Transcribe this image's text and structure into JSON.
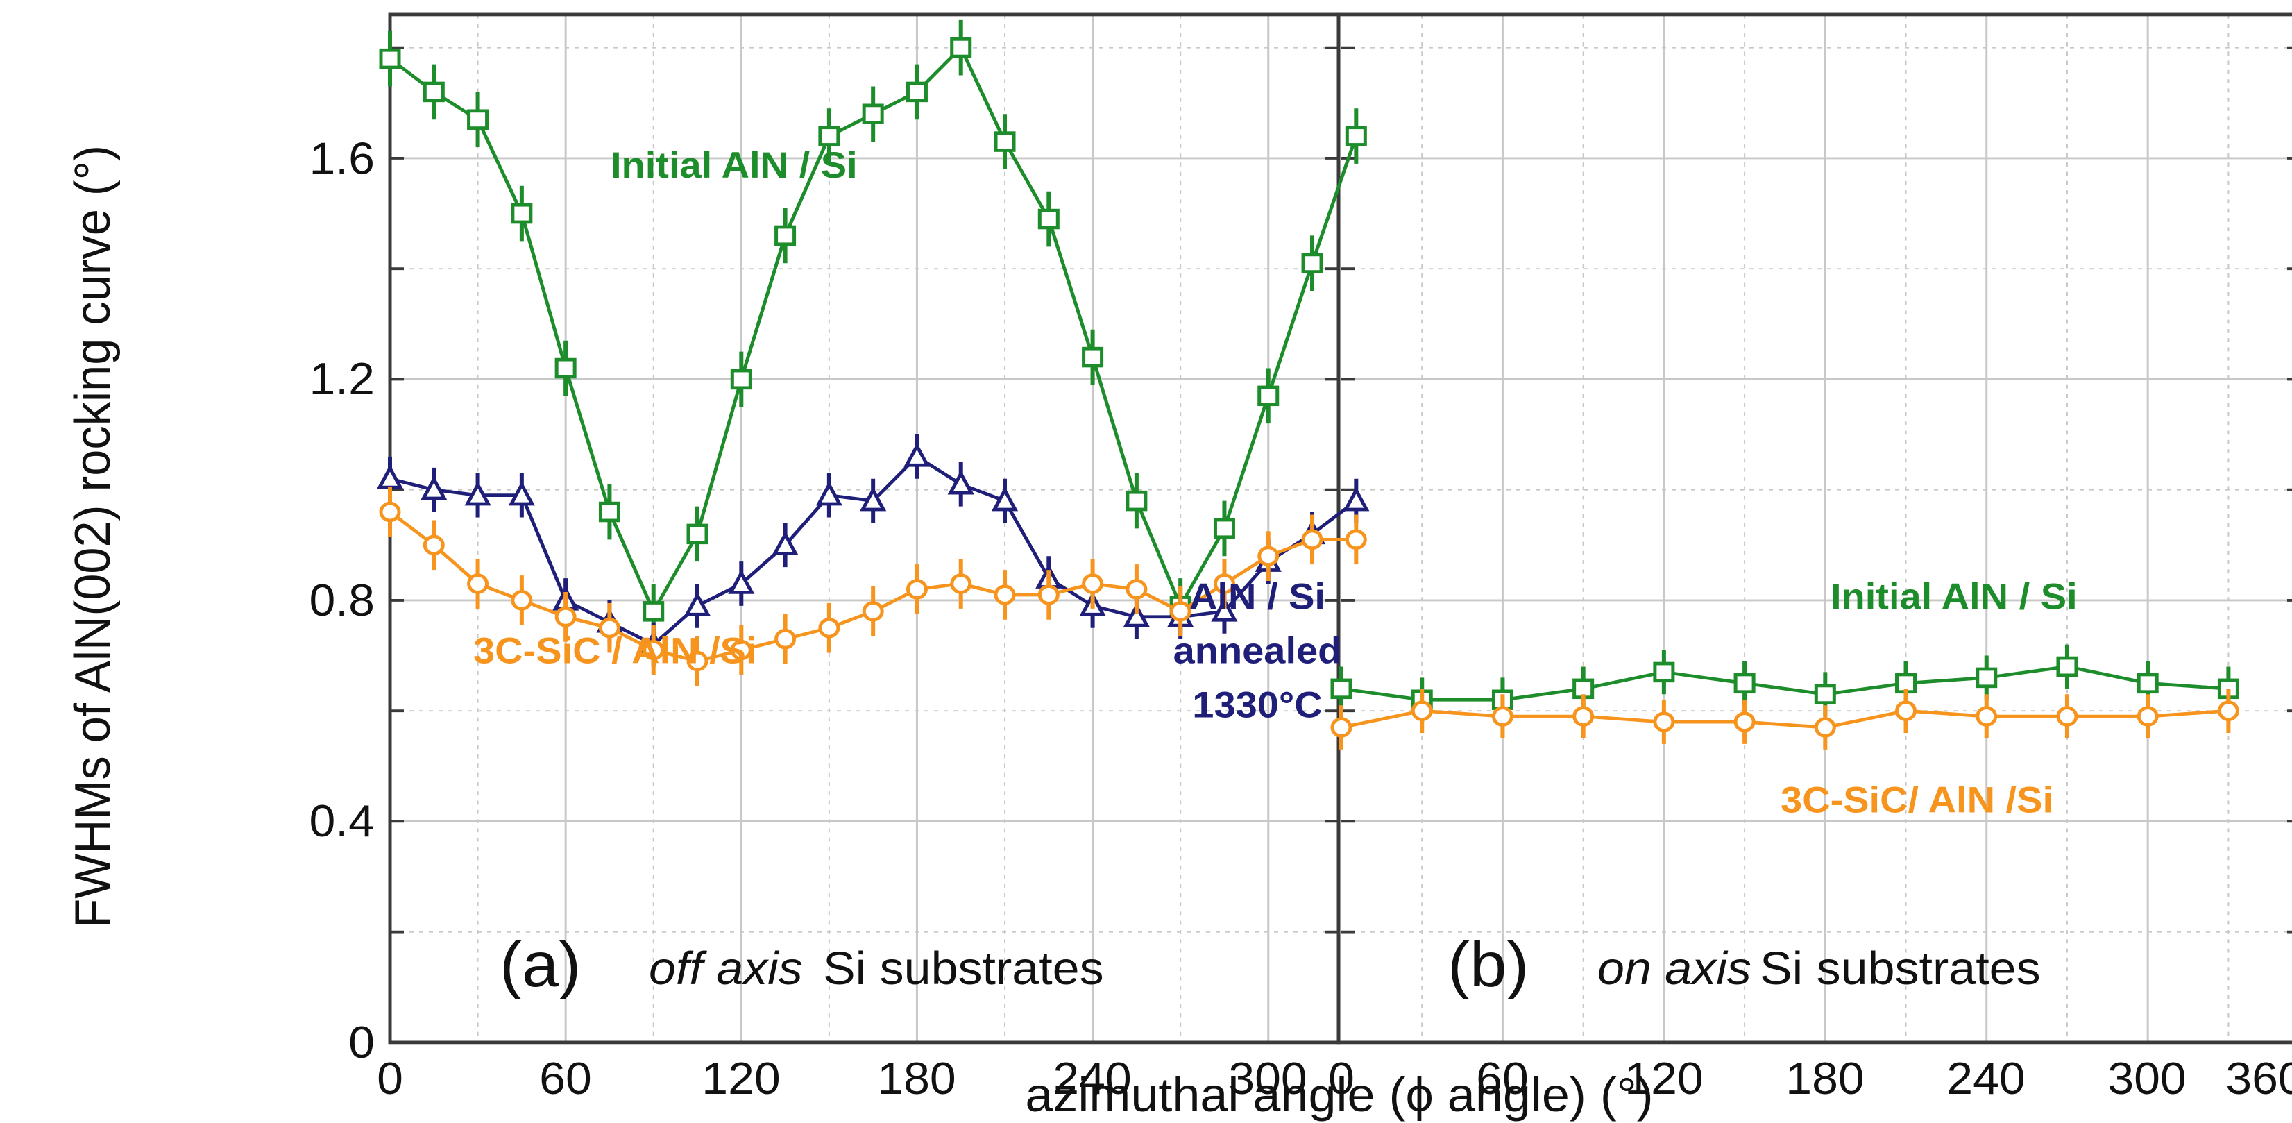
{
  "colors": {
    "initial": "#1d8c2a",
    "annealed": "#1f1f7a",
    "sic": "#f7941d",
    "grid": "#c8c8c8",
    "frame": "#3a3a3a"
  },
  "yaxis": {
    "title": "FWHMs of AlN(002) rocking curve (°)",
    "ticks": [
      "0",
      "0.4",
      "0.8",
      "1.2",
      "1.6"
    ],
    "tick_values": [
      0,
      0.4,
      0.8,
      1.2,
      1.6
    ]
  },
  "xaxis": {
    "title": "azimuthal angle (ϕ angle) (°)",
    "ticks_a": [
      "0",
      "60",
      "120",
      "180",
      "240",
      "300"
    ],
    "ticks_b": [
      "0",
      "60",
      "120",
      "180",
      "240",
      "300",
      "360"
    ]
  },
  "panel_a": {
    "letter": "(a)",
    "axis_word": "off axis",
    "substrate_text": "Si substrates",
    "labels": {
      "initial": "Initial AlN / Si",
      "annealed_1": "AlN / Si",
      "annealed_2": "annealed",
      "annealed_3": "1330°C",
      "sic": "3C-SiC / AlN /Si"
    }
  },
  "panel_b": {
    "letter": "(b)",
    "axis_word": "on axis",
    "substrate_text": "Si substrates",
    "labels": {
      "initial": "Initial AlN / Si",
      "sic": "3C-SiC/ AlN /Si"
    }
  },
  "chart_data": [
    {
      "type": "line",
      "panel": "(a) off axis Si substrates",
      "xlabel": "azimuthal angle (ϕ angle) (°)",
      "ylabel": "FWHMs of AlN(002) rocking curve (°)",
      "xlim": [
        0,
        330
      ],
      "ylim": [
        0,
        1.86
      ],
      "x": [
        0,
        15,
        30,
        45,
        60,
        75,
        90,
        105,
        120,
        135,
        150,
        165,
        180,
        195,
        210,
        225,
        240,
        255,
        270,
        285,
        300,
        315,
        330
      ],
      "series": [
        {
          "name": "Initial AlN / Si",
          "marker": "square",
          "color": "#1d8c2a",
          "values": [
            1.78,
            1.72,
            1.67,
            1.5,
            1.22,
            0.96,
            0.78,
            0.92,
            1.2,
            1.46,
            1.64,
            1.68,
            1.72,
            1.8,
            1.63,
            1.49,
            1.24,
            0.98,
            0.79,
            0.93,
            1.17,
            1.41,
            1.64
          ],
          "error": 0.05
        },
        {
          "name": "AlN / Si annealed 1330°C",
          "marker": "triangle",
          "color": "#1f1f7a",
          "values": [
            1.02,
            1.0,
            0.99,
            0.99,
            0.8,
            0.76,
            0.72,
            0.79,
            0.83,
            0.9,
            0.99,
            0.98,
            1.06,
            1.01,
            0.98,
            0.84,
            0.79,
            0.77,
            0.77,
            0.78,
            0.87,
            0.92,
            0.98
          ],
          "error": 0.04
        },
        {
          "name": "3C-SiC / AlN /Si",
          "marker": "circle",
          "color": "#f7941d",
          "values": [
            0.96,
            0.9,
            0.83,
            0.8,
            0.77,
            0.75,
            0.71,
            0.69,
            0.71,
            0.73,
            0.75,
            0.78,
            0.82,
            0.83,
            0.81,
            0.81,
            0.83,
            0.82,
            0.78,
            0.83,
            0.88,
            0.91,
            0.91
          ],
          "error": 0.045
        }
      ]
    },
    {
      "type": "line",
      "panel": "(b) on axis Si substrates",
      "xlabel": "azimuthal angle (ϕ angle) (°)",
      "ylabel": "FWHMs of AlN(002) rocking curve (°)",
      "xlim": [
        0,
        360
      ],
      "ylim": [
        0,
        1.86
      ],
      "x": [
        0,
        30,
        60,
        90,
        120,
        150,
        180,
        210,
        240,
        270,
        300,
        330
      ],
      "series": [
        {
          "name": "Initial AlN / Si",
          "marker": "square",
          "color": "#1d8c2a",
          "values": [
            0.64,
            0.62,
            0.62,
            0.64,
            0.67,
            0.65,
            0.63,
            0.65,
            0.66,
            0.68,
            0.65,
            0.64
          ],
          "error": 0.04
        },
        {
          "name": "3C-SiC/ AlN /Si",
          "marker": "circle",
          "color": "#f7941d",
          "values": [
            0.57,
            0.6,
            0.59,
            0.59,
            0.58,
            0.58,
            0.57,
            0.6,
            0.59,
            0.59,
            0.59,
            0.6
          ],
          "error": 0.04
        }
      ]
    }
  ]
}
